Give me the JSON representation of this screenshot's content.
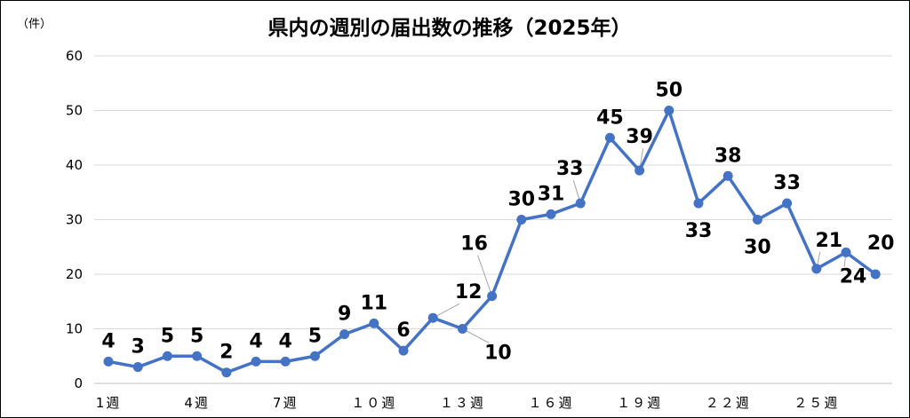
{
  "chart_data": {
    "type": "line",
    "title": "県内の週別の届出数の推移（2025年）",
    "unit_label": "（件）",
    "xlabel": "",
    "ylabel": "",
    "ylim": [
      0,
      60
    ],
    "yticks": [
      0,
      10,
      20,
      30,
      40,
      50,
      60
    ],
    "x": [
      1,
      2,
      3,
      4,
      5,
      6,
      7,
      8,
      9,
      10,
      11,
      12,
      13,
      14,
      15,
      16,
      17,
      18,
      19,
      20,
      21,
      22,
      23,
      24,
      25,
      26,
      27
    ],
    "x_tick_labels": [
      {
        "x": 1,
        "label": "1週"
      },
      {
        "x": 4,
        "label": "4週"
      },
      {
        "x": 7,
        "label": "7週"
      },
      {
        "x": 10,
        "label": "１０週"
      },
      {
        "x": 13,
        "label": "１３週"
      },
      {
        "x": 16,
        "label": "１６週"
      },
      {
        "x": 19,
        "label": "１９週"
      },
      {
        "x": 22,
        "label": "２２週"
      },
      {
        "x": 25,
        "label": "２５週"
      }
    ],
    "series": [
      {
        "values": [
          4,
          3,
          5,
          5,
          2,
          4,
          4,
          5,
          9,
          11,
          6,
          12,
          10,
          16,
          30,
          31,
          33,
          45,
          39,
          50,
          33,
          38,
          30,
          33,
          21,
          24,
          20
        ],
        "color": "#4472C4"
      }
    ],
    "grid": true,
    "legend": "none"
  }
}
